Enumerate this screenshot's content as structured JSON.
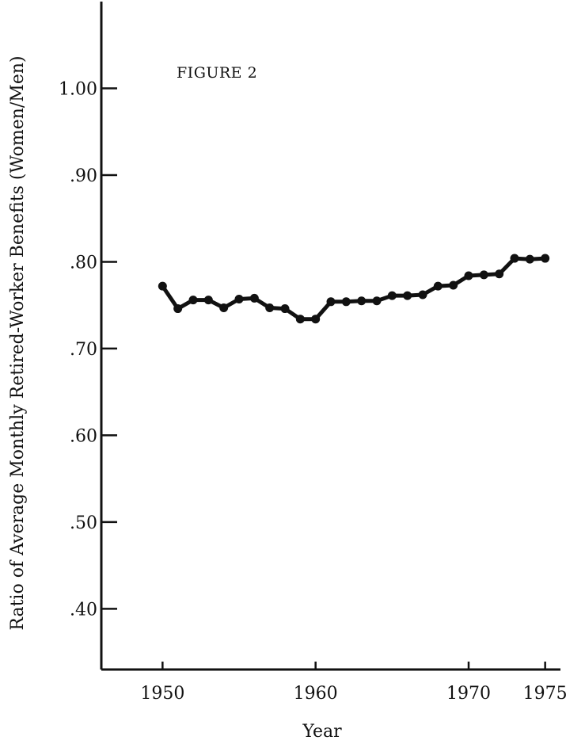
{
  "figure_label": "FIGURE 2",
  "chart_data": {
    "type": "line",
    "title": "",
    "xlabel": "Year",
    "ylabel": "Ratio of Average Monthly Retired-Worker Benefits (Women/Men)",
    "x": [
      1950,
      1951,
      1952,
      1953,
      1954,
      1955,
      1956,
      1957,
      1958,
      1959,
      1960,
      1961,
      1962,
      1963,
      1964,
      1965,
      1966,
      1967,
      1968,
      1969,
      1970,
      1971,
      1972,
      1973,
      1974,
      1975
    ],
    "series": [
      {
        "values": [
          0.772,
          0.746,
          0.756,
          0.756,
          0.747,
          0.757,
          0.758,
          0.747,
          0.746,
          0.734,
          0.734,
          0.754,
          0.754,
          0.755,
          0.755,
          0.761,
          0.761,
          0.762,
          0.772,
          0.773,
          0.784,
          0.785,
          0.786,
          0.804,
          0.803,
          0.804
        ]
      }
    ],
    "xlim": [
      1946,
      1976
    ],
    "ylim": [
      0.33,
      1.1
    ],
    "x_ticks": [
      1950,
      1960,
      1970,
      1975
    ],
    "x_tick_labels": [
      "1950",
      "1960",
      "1970",
      "1975"
    ],
    "y_ticks": [
      0.4,
      0.5,
      0.6,
      0.7,
      0.8,
      0.9,
      1.0
    ],
    "y_tick_labels": [
      ".40",
      ".50",
      ".60",
      ".70",
      ".80",
      ".90",
      "1.00"
    ],
    "grid": false,
    "legend": "none",
    "colors": {
      "line": "#111111",
      "axis": "#111111"
    }
  }
}
